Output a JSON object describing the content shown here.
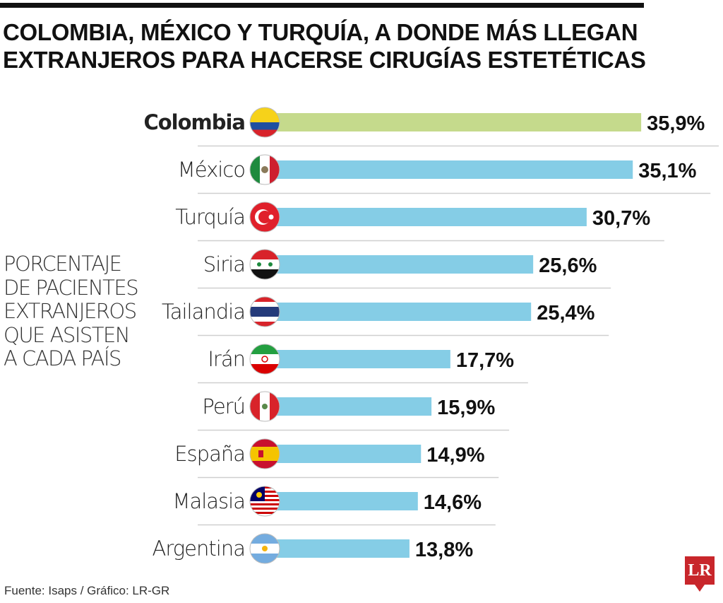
{
  "title_line1": "COLOMBIA, MÉXICO Y TURQUÍA, A DONDE MÁS LLEGAN",
  "title_line2": "EXTRANJEROS PARA HACERSE CIRUGÍAS ESTETÉTICAS",
  "side_label": [
    "PORCENTAJE",
    "DE PACIENTES",
    "EXTRANJEROS",
    "QUE ASISTEN",
    "A CADA PAÍS"
  ],
  "source": "Fuente: Isaps / Gráfico: LR-GR",
  "logo": "LR",
  "colors": {
    "highlight": "#c5da8c",
    "bar": "#85cde6",
    "separator": "#cfcfcf"
  },
  "chart_data": {
    "type": "bar",
    "orientation": "horizontal",
    "categories": [
      "Colombia",
      "México",
      "Turquía",
      "Siria",
      "Tailandia",
      "Irán",
      "Perú",
      "España",
      "Malasia",
      "Argentina"
    ],
    "values": [
      35.9,
      35.1,
      30.7,
      25.6,
      25.4,
      17.7,
      15.9,
      14.9,
      14.6,
      13.8
    ],
    "labels": [
      "35,9%",
      "35,1%",
      "30,7%",
      "25,6%",
      "25,4%",
      "17,7%",
      "15,9%",
      "14,9%",
      "14,6%",
      "13,8%"
    ],
    "unit": "%",
    "highlighted": "Colombia",
    "flags": [
      "colombia-flag",
      "mexico-flag",
      "turkey-flag",
      "syria-flag",
      "thailand-flag",
      "iran-flag",
      "peru-flag",
      "spain-flag",
      "malaysia-flag",
      "argentina-flag"
    ],
    "grid": false,
    "legend": "none"
  }
}
